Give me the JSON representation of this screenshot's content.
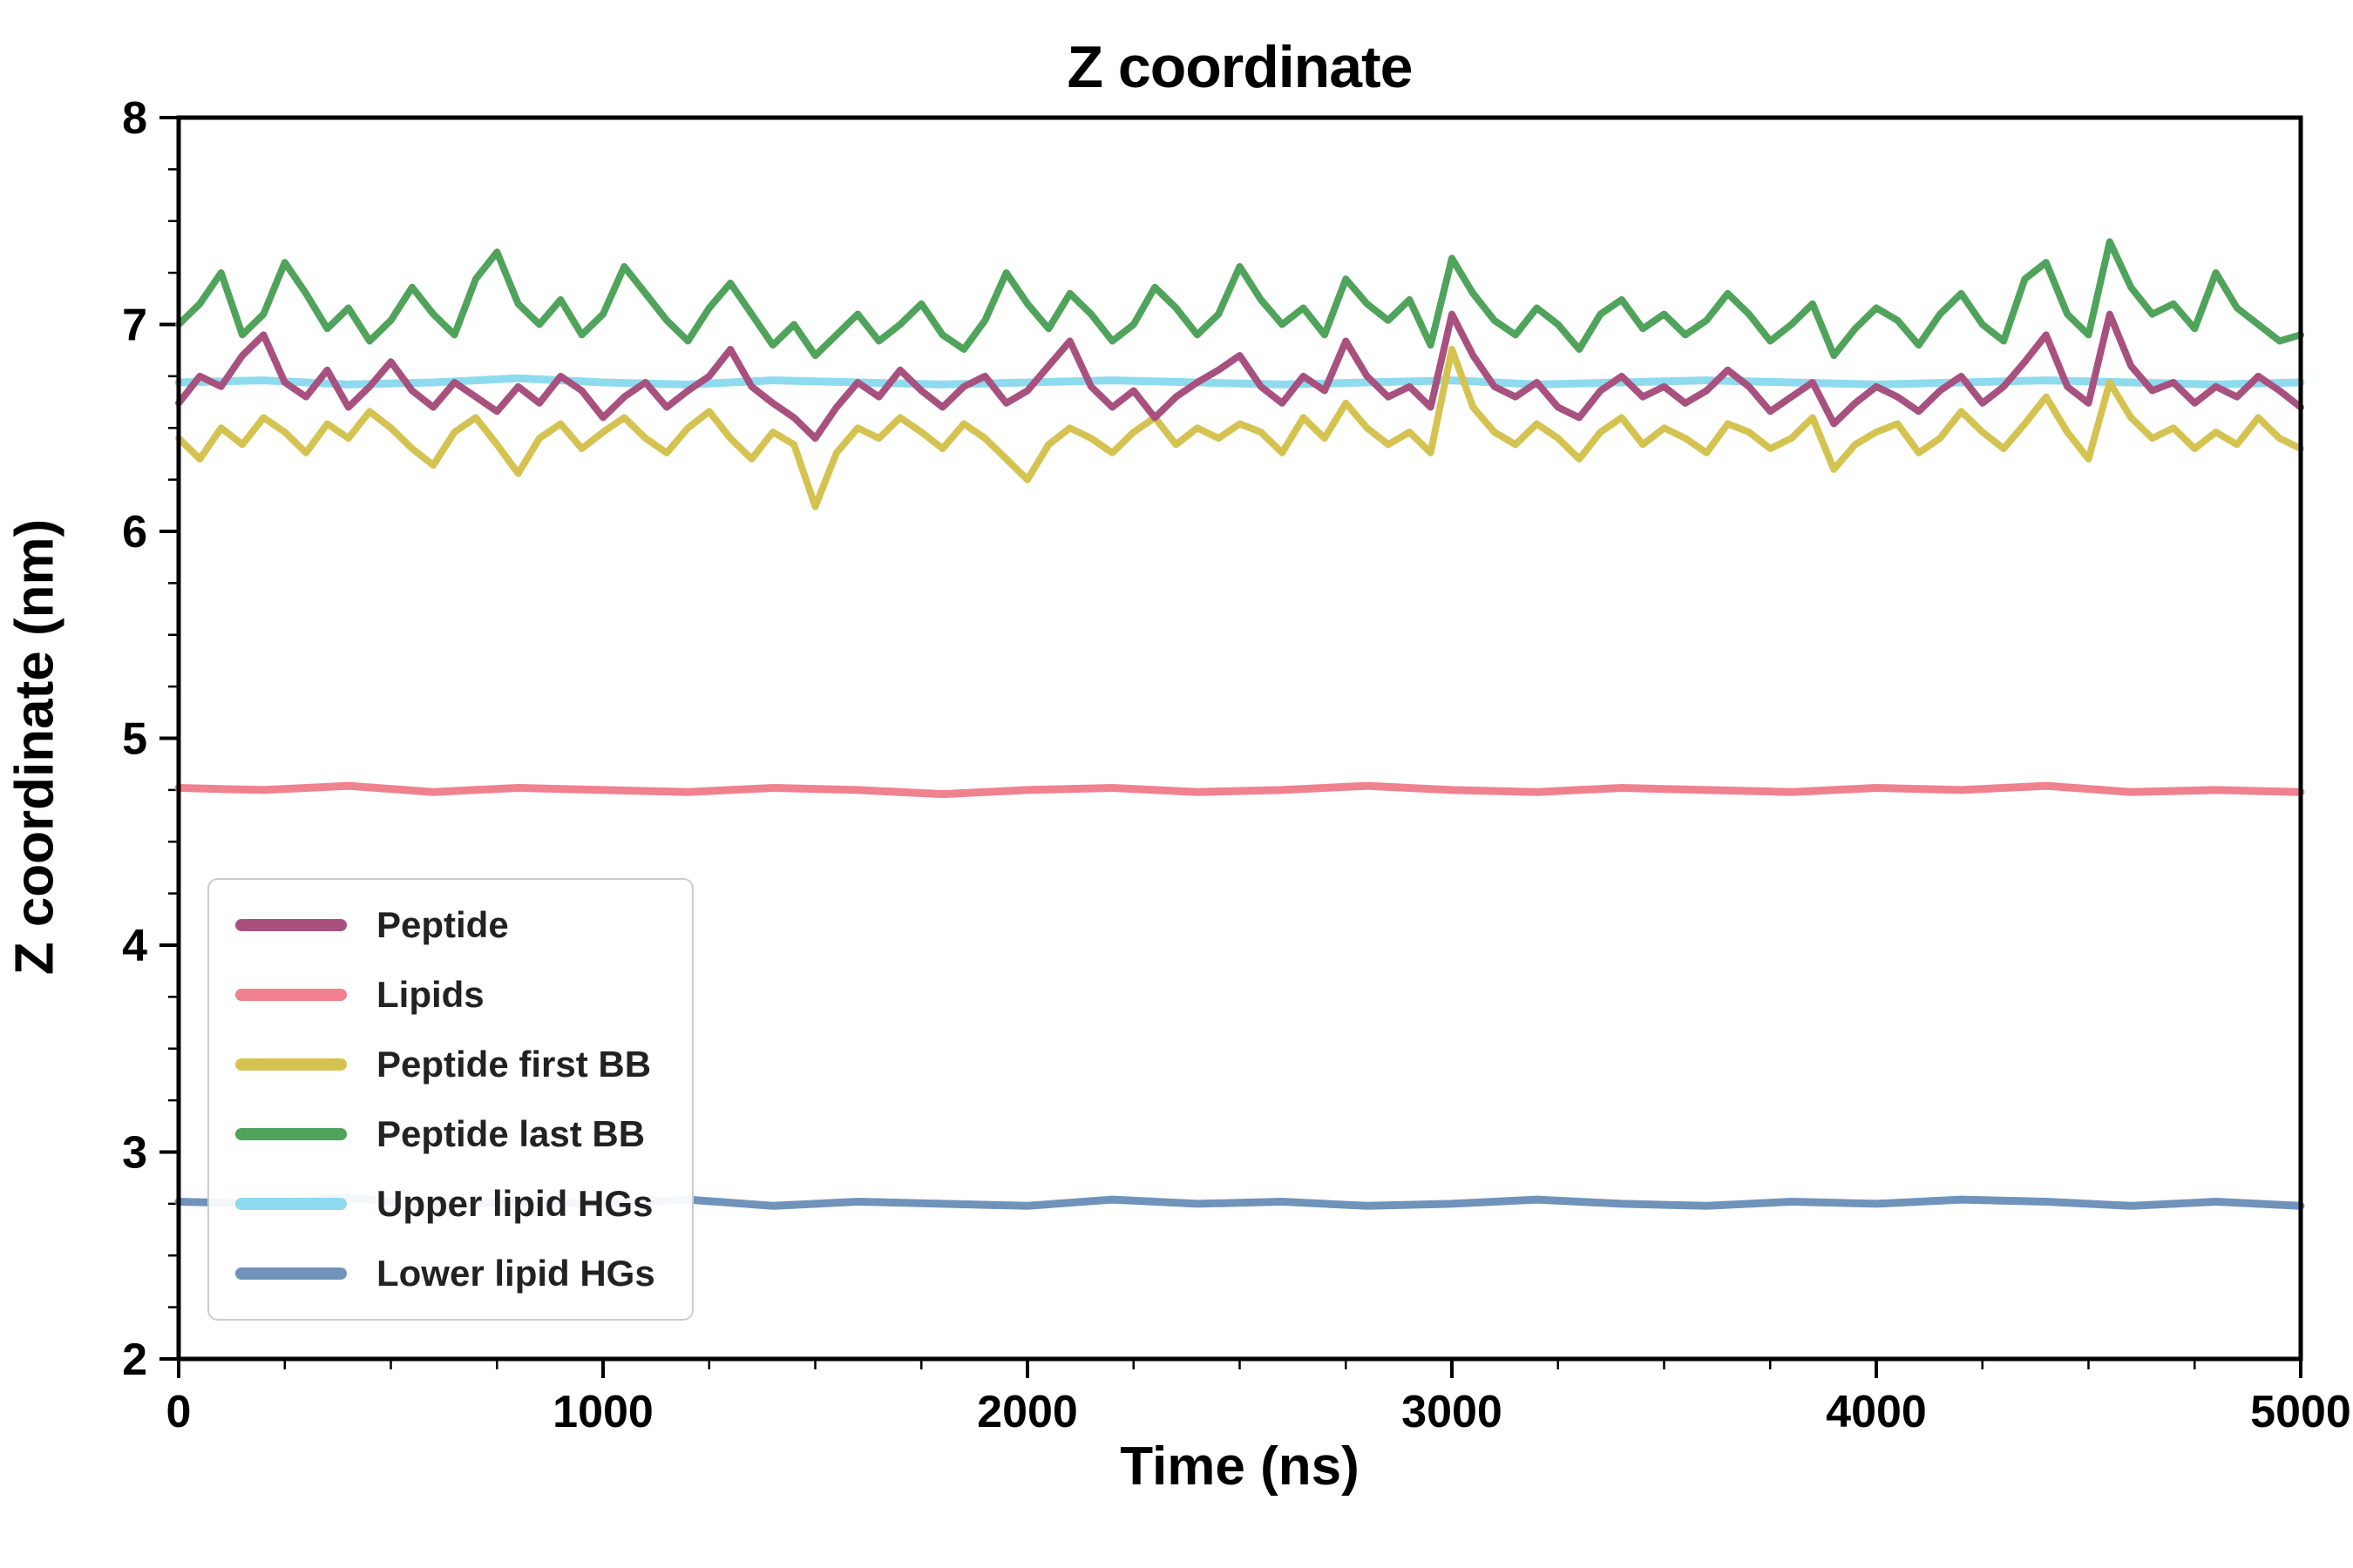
{
  "chart_data": {
    "type": "line",
    "title": "Z coordinate",
    "xlabel": "Time (ns)",
    "ylabel": "Z coordinate (nm)",
    "xlim": [
      0,
      5000
    ],
    "ylim": [
      2,
      8
    ],
    "xticks": [
      0,
      1000,
      2000,
      3000,
      4000,
      5000
    ],
    "yticks": [
      2,
      3,
      4,
      5,
      6,
      7,
      8
    ],
    "x_minor_step": 250,
    "y_minor_step": 0.25,
    "grid": false,
    "legend_position": "lower left",
    "draw_order": [
      4,
      5,
      1,
      2,
      0,
      3
    ],
    "series": [
      {
        "name": "Peptide",
        "color": "#a8517f",
        "values": [
          6.62,
          6.75,
          6.7,
          6.85,
          6.95,
          6.72,
          6.65,
          6.78,
          6.6,
          6.7,
          6.82,
          6.68,
          6.6,
          6.72,
          6.65,
          6.58,
          6.7,
          6.62,
          6.75,
          6.68,
          6.55,
          6.65,
          6.72,
          6.6,
          6.68,
          6.75,
          6.88,
          6.7,
          6.62,
          6.55,
          6.45,
          6.6,
          6.72,
          6.65,
          6.78,
          6.68,
          6.6,
          6.7,
          6.75,
          6.62,
          6.68,
          6.8,
          6.92,
          6.7,
          6.6,
          6.68,
          6.55,
          6.65,
          6.72,
          6.78,
          6.85,
          6.7,
          6.62,
          6.75,
          6.68,
          6.92,
          6.75,
          6.65,
          6.7,
          6.6,
          7.05,
          6.85,
          6.7,
          6.65,
          6.72,
          6.6,
          6.55,
          6.68,
          6.75,
          6.65,
          6.7,
          6.62,
          6.68,
          6.78,
          6.7,
          6.58,
          6.65,
          6.72,
          6.52,
          6.62,
          6.7,
          6.65,
          6.58,
          6.68,
          6.75,
          6.62,
          6.7,
          6.82,
          6.95,
          6.7,
          6.62,
          7.05,
          6.8,
          6.68,
          6.72,
          6.62,
          6.7,
          6.65,
          6.75,
          6.68,
          6.6
        ]
      },
      {
        "name": "Lipids",
        "color": "#f0818f",
        "values": [
          4.76,
          4.75,
          4.77,
          4.74,
          4.76,
          4.75,
          4.74,
          4.76,
          4.75,
          4.73,
          4.75,
          4.76,
          4.74,
          4.75,
          4.77,
          4.75,
          4.74,
          4.76,
          4.75,
          4.74,
          4.76,
          4.75,
          4.77,
          4.74,
          4.75,
          4.74
        ]
      },
      {
        "name": "Peptide first BB",
        "color": "#d5c351",
        "values": [
          6.45,
          6.35,
          6.5,
          6.42,
          6.55,
          6.48,
          6.38,
          6.52,
          6.45,
          6.58,
          6.5,
          6.4,
          6.32,
          6.48,
          6.55,
          6.42,
          6.28,
          6.45,
          6.52,
          6.4,
          6.48,
          6.55,
          6.45,
          6.38,
          6.5,
          6.58,
          6.45,
          6.35,
          6.48,
          6.42,
          6.12,
          6.38,
          6.5,
          6.45,
          6.55,
          6.48,
          6.4,
          6.52,
          6.45,
          6.35,
          6.25,
          6.42,
          6.5,
          6.45,
          6.38,
          6.48,
          6.55,
          6.42,
          6.5,
          6.45,
          6.52,
          6.48,
          6.38,
          6.55,
          6.45,
          6.62,
          6.5,
          6.42,
          6.48,
          6.38,
          6.88,
          6.6,
          6.48,
          6.42,
          6.52,
          6.45,
          6.35,
          6.48,
          6.55,
          6.42,
          6.5,
          6.45,
          6.38,
          6.52,
          6.48,
          6.4,
          6.45,
          6.55,
          6.3,
          6.42,
          6.48,
          6.52,
          6.38,
          6.45,
          6.58,
          6.48,
          6.4,
          6.52,
          6.65,
          6.48,
          6.35,
          6.72,
          6.55,
          6.45,
          6.5,
          6.4,
          6.48,
          6.42,
          6.55,
          6.45,
          6.4
        ]
      },
      {
        "name": "Peptide last BB",
        "color": "#4fa35a",
        "values": [
          7.0,
          7.1,
          7.25,
          6.95,
          7.05,
          7.3,
          7.15,
          6.98,
          7.08,
          6.92,
          7.02,
          7.18,
          7.05,
          6.95,
          7.22,
          7.35,
          7.1,
          7.0,
          7.12,
          6.95,
          7.05,
          7.28,
          7.15,
          7.02,
          6.92,
          7.08,
          7.2,
          7.05,
          6.9,
          7.0,
          6.85,
          6.95,
          7.05,
          6.92,
          7.0,
          7.1,
          6.95,
          6.88,
          7.02,
          7.25,
          7.1,
          6.98,
          7.15,
          7.05,
          6.92,
          7.0,
          7.18,
          7.08,
          6.95,
          7.05,
          7.28,
          7.12,
          7.0,
          7.08,
          6.95,
          7.22,
          7.1,
          7.02,
          7.12,
          6.9,
          7.32,
          7.15,
          7.02,
          6.95,
          7.08,
          7.0,
          6.88,
          7.05,
          7.12,
          6.98,
          7.05,
          6.95,
          7.02,
          7.15,
          7.05,
          6.92,
          7.0,
          7.1,
          6.85,
          6.98,
          7.08,
          7.02,
          6.9,
          7.05,
          7.15,
          7.0,
          6.92,
          7.22,
          7.3,
          7.05,
          6.95,
          7.4,
          7.18,
          7.05,
          7.1,
          6.98,
          7.25,
          7.08,
          7.0,
          6.92,
          6.95
        ]
      },
      {
        "name": "Upper lipid HGs",
        "color": "#8edbf0",
        "values": [
          6.72,
          6.73,
          6.71,
          6.72,
          6.74,
          6.72,
          6.71,
          6.73,
          6.72,
          6.71,
          6.72,
          6.73,
          6.72,
          6.71,
          6.72,
          6.73,
          6.71,
          6.72,
          6.73,
          6.72,
          6.71,
          6.72,
          6.73,
          6.72,
          6.71,
          6.72
        ]
      },
      {
        "name": "Lower lipid HGs",
        "color": "#7093bb",
        "values": [
          2.76,
          2.75,
          2.78,
          2.74,
          2.76,
          2.75,
          2.77,
          2.74,
          2.76,
          2.75,
          2.74,
          2.77,
          2.75,
          2.76,
          2.74,
          2.75,
          2.77,
          2.75,
          2.74,
          2.76,
          2.75,
          2.77,
          2.76,
          2.74,
          2.76,
          2.74
        ]
      }
    ]
  }
}
